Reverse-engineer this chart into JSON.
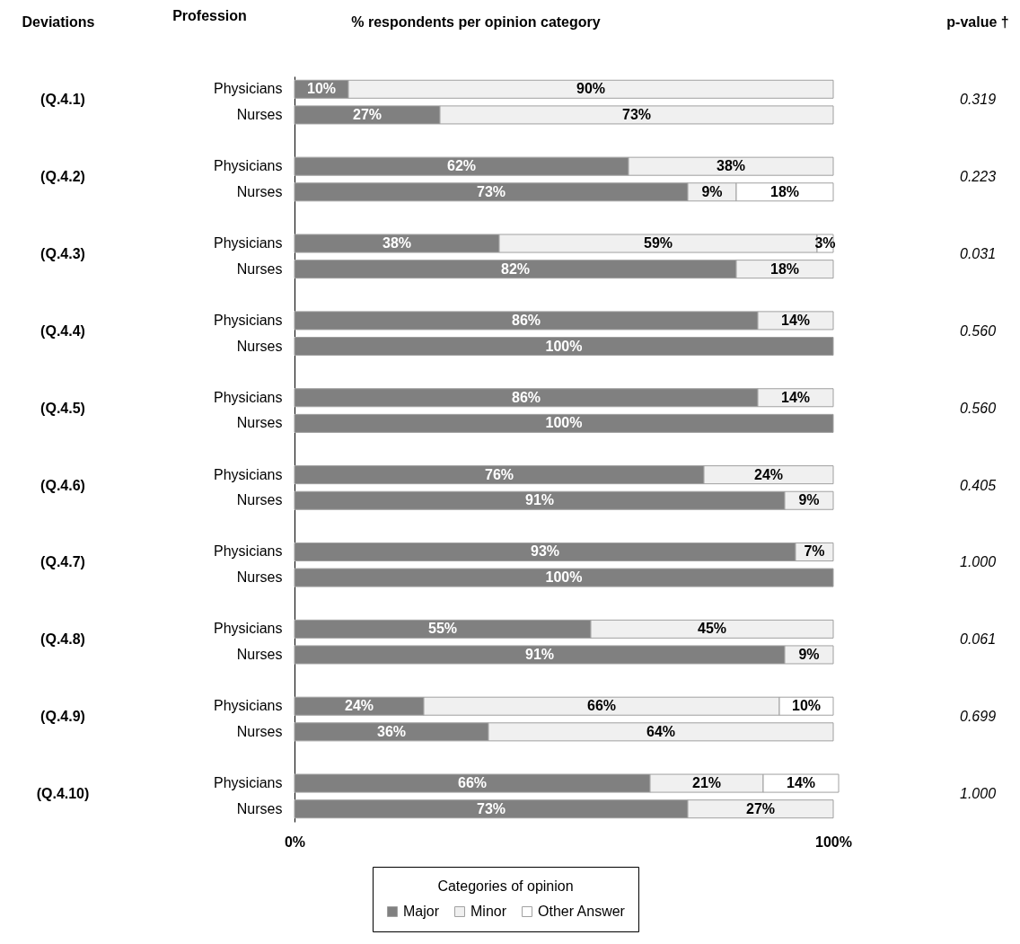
{
  "chart_data": {
    "type": "bar",
    "orientation": "horizontal",
    "stacked": true,
    "title": "% respondents per opinion category",
    "ylabel": "Profession",
    "legend_title": "Categories of opinion",
    "categories": [
      "Physicians",
      "Nurses",
      "Physicians",
      "Nurses",
      "Physicians",
      "Nurses",
      "Physicians",
      "Nurses",
      "Physicians",
      "Nurses",
      "Physicians",
      "Nurses",
      "Physicians",
      "Nurses",
      "Physicians",
      "Nurses",
      "Physicians",
      "Nurses",
      "Physicians",
      "Nurses"
    ],
    "series": [
      {
        "name": "Major",
        "color": "#808080",
        "values": [
          10,
          27,
          62,
          73,
          38,
          82,
          86,
          100,
          86,
          100,
          76,
          91,
          93,
          100,
          55,
          91,
          24,
          36,
          66,
          73
        ],
        "value_labels": [
          "10%",
          "27%",
          "62%",
          "73%",
          "38%",
          "82%",
          "86%",
          "100%",
          "86%",
          "100%",
          "76%",
          "91%",
          "93%",
          "100%",
          "55%",
          "91%",
          "24%",
          "36%",
          "66%",
          "73%"
        ]
      },
      {
        "name": "Minor",
        "color": "#f0f0f0",
        "values": [
          90,
          73,
          38,
          9,
          59,
          18,
          14,
          null,
          14,
          null,
          24,
          9,
          7,
          null,
          45,
          9,
          66,
          64,
          21,
          27
        ],
        "value_labels": [
          "90%",
          "73%",
          "38%",
          "9%",
          "59%",
          "18%",
          "14%",
          null,
          "14%",
          null,
          "24%",
          "9%",
          "7%",
          null,
          "45%",
          "9%",
          "66%",
          "64%",
          "21%",
          "27%"
        ]
      },
      {
        "name": "Other Answer",
        "color": "#ffffff",
        "values": [
          null,
          null,
          null,
          18,
          3,
          null,
          null,
          null,
          null,
          null,
          null,
          null,
          null,
          null,
          null,
          null,
          10,
          null,
          14,
          null
        ],
        "value_labels": [
          null,
          null,
          null,
          "18%",
          "3%",
          null,
          null,
          null,
          null,
          null,
          null,
          null,
          null,
          null,
          null,
          null,
          "10%",
          null,
          "14%",
          null
        ]
      }
    ],
    "xlim": [
      0,
      101
    ],
    "xticks": [
      {
        "value": 0,
        "label": "0%"
      },
      {
        "value": 100,
        "label": "100%"
      }
    ],
    "legend": "bottom",
    "annotations": [
      "Deviations",
      "p-value †",
      "(Q.4.1)",
      "(Q.4.2)",
      "(Q.4.3)",
      "(Q.4.4)",
      "(Q.4.5)",
      "(Q.4.6)",
      "(Q.4.7)",
      "(Q.4.8)",
      "(Q.4.9)",
      "(Q.4.10)",
      "0.319",
      "0.223",
      "0.031",
      "0.560",
      "0.560",
      "0.405",
      "1.000",
      "0.061",
      "0.699",
      "1.000"
    ]
  }
}
